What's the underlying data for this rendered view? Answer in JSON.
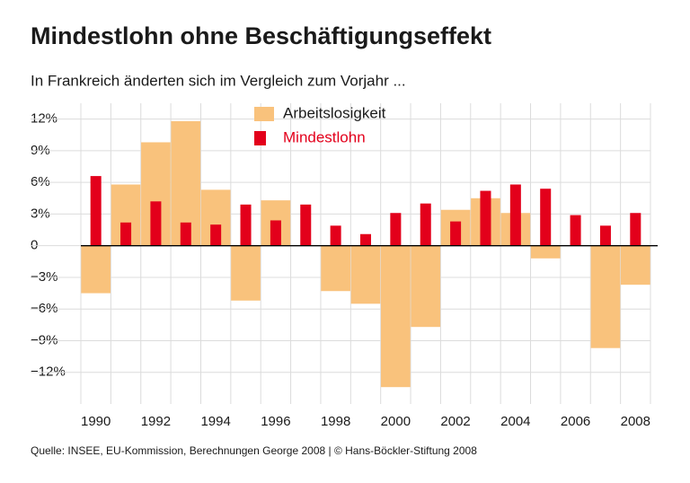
{
  "chart_data": {
    "type": "bar",
    "title": "Mindestlohn ohne Beschäftigungseffekt",
    "subtitle": "In Frankreich änderten sich im Vergleich zum Vorjahr ...",
    "source": "Quelle: INSEE, EU-Kommission, Berechnungen George 2008 | © Hans-Böckler-Stiftung 2008",
    "x": [
      1990,
      1991,
      1992,
      1993,
      1994,
      1995,
      1996,
      1997,
      1998,
      1999,
      2000,
      2001,
      2002,
      2003,
      2004,
      2005,
      2006,
      2007,
      2008
    ],
    "xlim": [
      1989.5,
      2008.5
    ],
    "xticks": [
      1990,
      1992,
      1994,
      1996,
      1998,
      2000,
      2002,
      2004,
      2006,
      2008
    ],
    "ylim": [
      -15,
      13.5
    ],
    "yticks": [
      {
        "value": 12,
        "label": "12%"
      },
      {
        "value": 9,
        "label": "9%"
      },
      {
        "value": 6,
        "label": "6%"
      },
      {
        "value": 3,
        "label": "3%"
      },
      0,
      {
        "value": -3,
        "label": "−3%"
      },
      {
        "value": -6,
        "label": "−6%"
      },
      {
        "value": -9,
        "label": "−9%"
      },
      {
        "value": -12,
        "label": "−12%"
      }
    ],
    "grid": true,
    "series": [
      {
        "name": "Arbeitslosigkeit",
        "color": "#f9c27c",
        "values": [
          -4.5,
          5.8,
          9.8,
          11.8,
          5.3,
          -5.2,
          4.3,
          0,
          -4.3,
          -5.5,
          -13.4,
          -7.7,
          3.4,
          4.5,
          3.1,
          -1.2,
          0,
          -9.7,
          -3.7
        ]
      },
      {
        "name": "Mindestlohn",
        "color": "#e3001b",
        "values": [
          6.6,
          2.2,
          4.2,
          2.2,
          2.0,
          3.9,
          2.4,
          3.9,
          1.9,
          1.1,
          3.1,
          4.0,
          2.3,
          5.2,
          5.8,
          5.4,
          2.9,
          1.9,
          3.1
        ]
      }
    ]
  }
}
